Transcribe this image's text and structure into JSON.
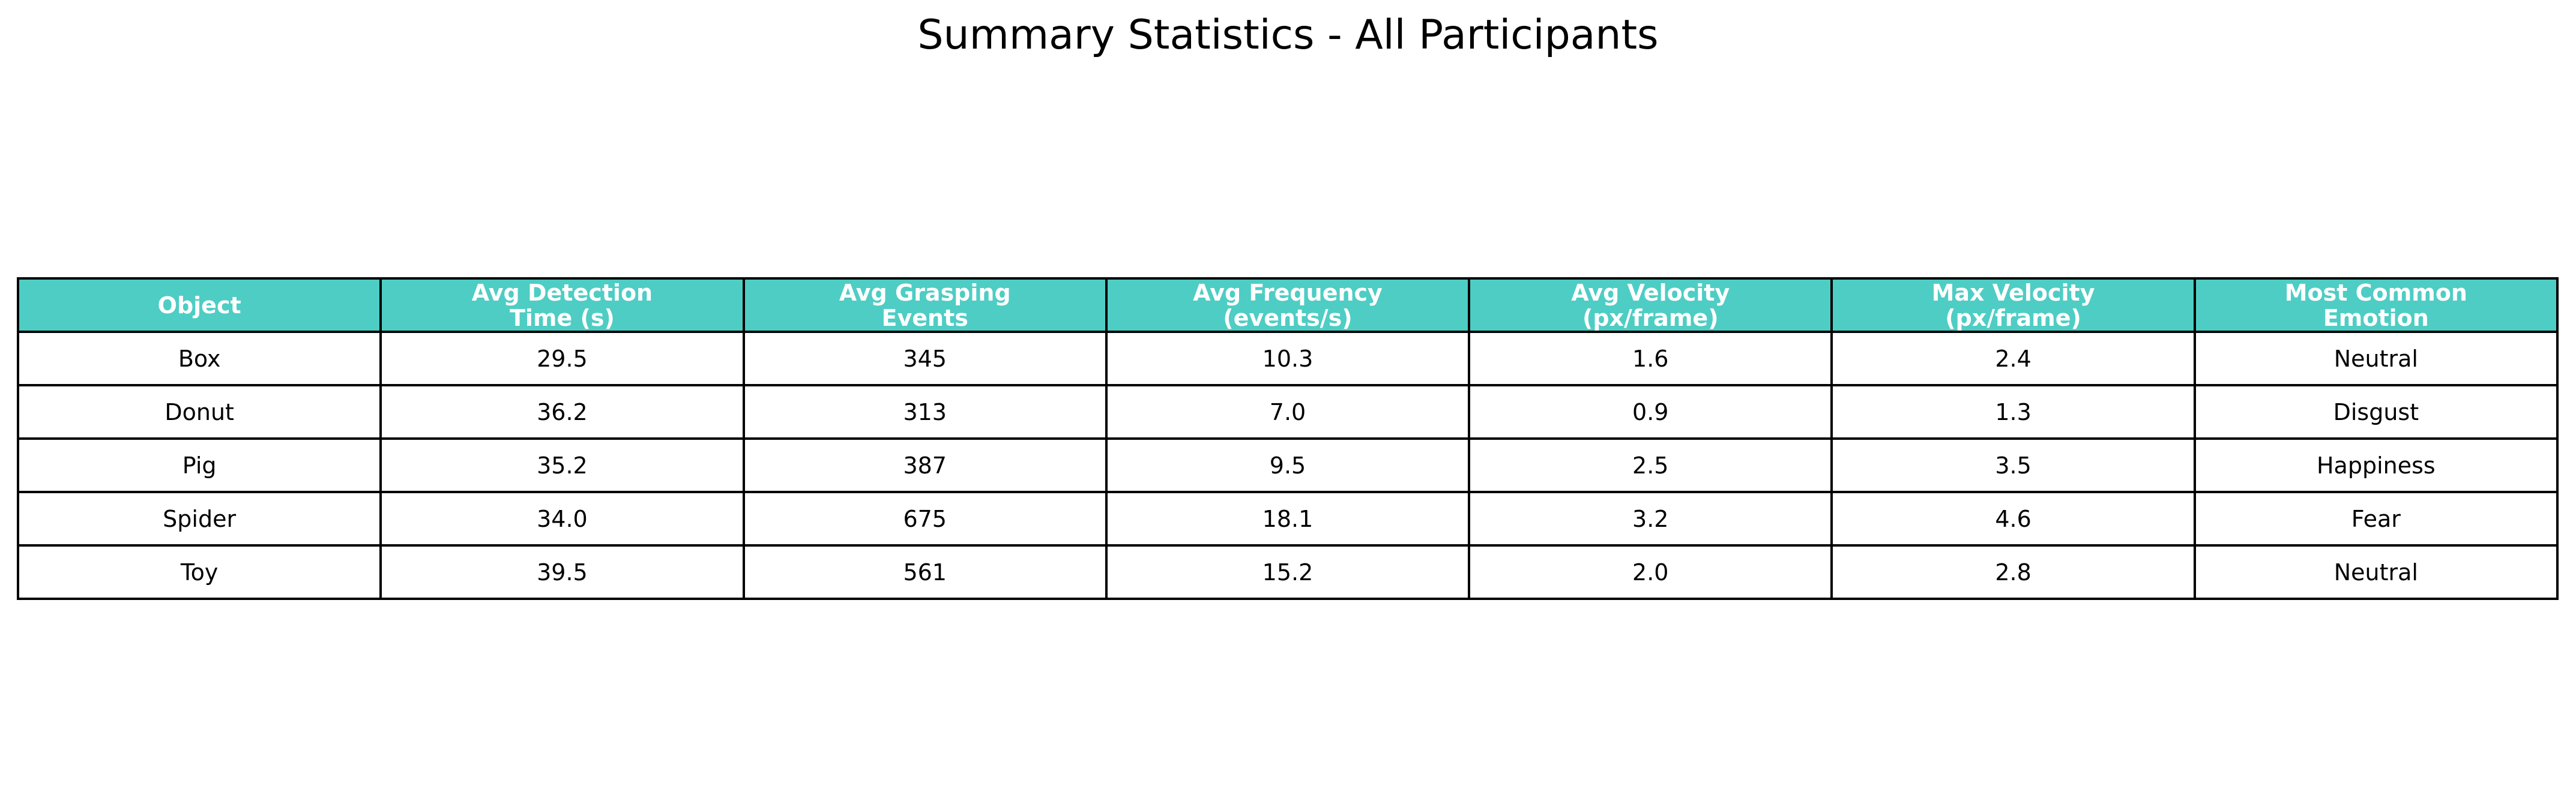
{
  "chart_data": {
    "type": "table",
    "title": "Summary Statistics - All Participants",
    "header_color": "#4ECDC4",
    "header_text_color": "#FFFFFF",
    "columns": [
      {
        "key": "object",
        "lines": [
          "Object"
        ]
      },
      {
        "key": "avg_detection_time",
        "lines": [
          "Avg Detection",
          "Time (s)"
        ]
      },
      {
        "key": "avg_grasping_events",
        "lines": [
          "Avg Grasping",
          "Events"
        ]
      },
      {
        "key": "avg_frequency",
        "lines": [
          "Avg Frequency",
          "(events/s)"
        ]
      },
      {
        "key": "avg_velocity",
        "lines": [
          "Avg Velocity",
          "(px/frame)"
        ]
      },
      {
        "key": "max_velocity",
        "lines": [
          "Max Velocity",
          "(px/frame)"
        ]
      },
      {
        "key": "most_common_emotion",
        "lines": [
          "Most Common",
          "Emotion"
        ]
      }
    ],
    "rows": [
      [
        "Box",
        "29.5",
        "345",
        "10.3",
        "1.6",
        "2.4",
        "Neutral"
      ],
      [
        "Donut",
        "36.2",
        "313",
        "7.0",
        "0.9",
        "1.3",
        "Disgust"
      ],
      [
        "Pig",
        "35.2",
        "387",
        "9.5",
        "2.5",
        "3.5",
        "Happiness"
      ],
      [
        "Spider",
        "34.0",
        "675",
        "18.1",
        "3.2",
        "4.6",
        "Fear"
      ],
      [
        "Toy",
        "39.5",
        "561",
        "15.2",
        "2.0",
        "2.8",
        "Neutral"
      ]
    ]
  }
}
